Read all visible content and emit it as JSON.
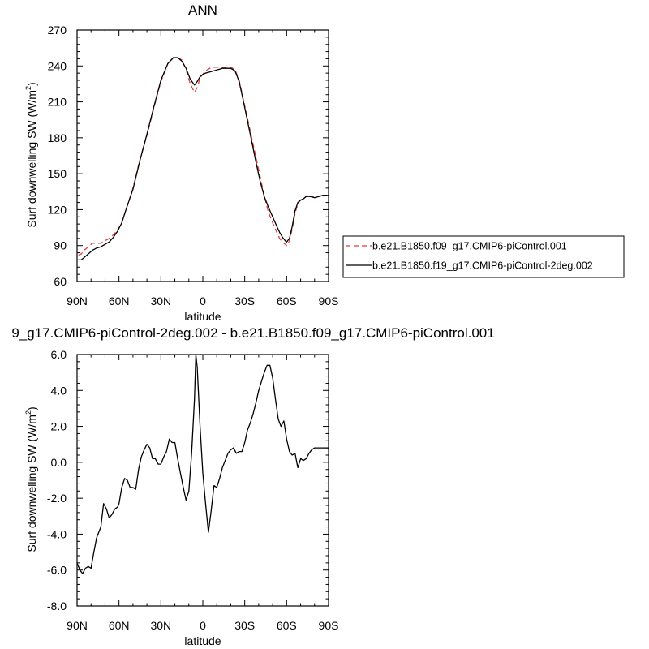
{
  "chart_data": [
    {
      "type": "line",
      "title": "ANN",
      "xlabel": "latitude",
      "ylabel": "Surf downwelling SW (W/m",
      "ylabel_sup": "2",
      "ylabel_close": ")",
      "xlim": [
        90,
        -90
      ],
      "ylim": [
        60,
        270
      ],
      "xticks": [
        90,
        60,
        30,
        0,
        -30,
        -60,
        -90
      ],
      "xtick_labels": [
        "90N",
        "60N",
        "30N",
        "0",
        "30S",
        "60S",
        "90S"
      ],
      "yticks": [
        60,
        90,
        120,
        150,
        180,
        210,
        240,
        270
      ],
      "ytick_labels": [
        "60",
        "90",
        "120",
        "150",
        "180",
        "210",
        "240",
        "270"
      ],
      "legend_position": "right",
      "series": [
        {
          "name": "b.e21.B1850.f09_g17.CMIP6-piControl.001",
          "color": "#e23b3b",
          "dash": "dashed",
          "x": [
            89,
            87,
            85,
            82,
            79,
            76,
            73,
            70,
            67,
            64,
            61,
            58,
            55,
            50,
            45,
            40,
            35,
            30,
            25,
            21,
            18,
            15,
            12,
            9,
            6,
            4,
            2,
            0,
            -2,
            -5,
            -8,
            -11,
            -14,
            -17,
            -20,
            -23,
            -26,
            -29,
            -32,
            -35,
            -38,
            -41,
            -44,
            -47,
            -50,
            -53,
            -55,
            -57,
            -59,
            -60,
            -62,
            -64,
            -66,
            -68,
            -70,
            -72,
            -74,
            -77,
            -80,
            -83,
            -86,
            -89
          ],
          "y": [
            82,
            83,
            86,
            89,
            92,
            92,
            92,
            94,
            96,
            99,
            103,
            109,
            120,
            138,
            162,
            182,
            205,
            227,
            242,
            247,
            247,
            245,
            237,
            225,
            218,
            222,
            230,
            233,
            236,
            238,
            239,
            239,
            239,
            239,
            239,
            237,
            228,
            212,
            196,
            180,
            164,
            148,
            131,
            118,
            109,
            101,
            96,
            93,
            91,
            90,
            94,
            104,
            117,
            125,
            128,
            129,
            131,
            132,
            130,
            131,
            132,
            132
          ]
        },
        {
          "name": "b.e21.B1850.f19_g17.CMIP6-piControl-2deg.002",
          "color": "#000000",
          "dash": "solid",
          "x": [
            89,
            87,
            85,
            82,
            79,
            76,
            73,
            70,
            67,
            64,
            61,
            58,
            55,
            50,
            45,
            40,
            35,
            30,
            25,
            21,
            18,
            15,
            12,
            9,
            6,
            4,
            2,
            0,
            -2,
            -5,
            -8,
            -11,
            -14,
            -17,
            -20,
            -23,
            -26,
            -29,
            -32,
            -35,
            -38,
            -41,
            -44,
            -47,
            -50,
            -53,
            -55,
            -57,
            -59,
            -60,
            -62,
            -64,
            -66,
            -68,
            -70,
            -72,
            -74,
            -77,
            -80,
            -83,
            -86,
            -89
          ],
          "y": [
            78,
            78,
            80,
            83,
            86,
            88,
            89,
            91,
            93,
            97,
            102,
            109,
            120,
            137,
            161,
            183,
            206,
            228,
            242,
            247,
            247,
            244,
            238,
            229,
            224,
            227,
            231,
            233,
            234,
            235,
            236,
            237,
            238,
            238,
            238,
            236,
            227,
            211,
            194,
            177,
            160,
            144,
            131,
            122,
            114,
            106,
            101,
            97,
            94,
            93,
            96,
            106,
            119,
            126,
            128,
            129,
            131,
            131,
            130,
            131,
            132,
            132
          ]
        }
      ]
    },
    {
      "type": "line",
      "title": "9_g17.CMIP6-piControl-2deg.002 - b.e21.B1850.f09_g17.CMIP6-piControl.001",
      "xlabel": "latitude",
      "ylabel": "Surf downwelling SW (W/m",
      "ylabel_sup": "2",
      "ylabel_close": ")",
      "xlim": [
        90,
        -90
      ],
      "ylim": [
        -8,
        6
      ],
      "xticks": [
        90,
        60,
        30,
        0,
        -30,
        -60,
        -90
      ],
      "xtick_labels": [
        "90N",
        "60N",
        "30N",
        "0",
        "30S",
        "60S",
        "90S"
      ],
      "yticks": [
        -8,
        -6,
        -4,
        -2,
        0,
        2,
        4,
        6
      ],
      "ytick_labels": [
        "-8.0",
        "-6.0",
        "-4.0",
        "-2.0",
        "0.0",
        "2.0",
        "4.0",
        "6.0"
      ],
      "series": [
        {
          "color": "#000000",
          "dash": "solid",
          "x": [
            90,
            88,
            86,
            84,
            82,
            80,
            78,
            76,
            73,
            71,
            69,
            67,
            65,
            63,
            61,
            60,
            58,
            56,
            54,
            52,
            50,
            48,
            46,
            44,
            42,
            40,
            38,
            36,
            34,
            32,
            30,
            28,
            26,
            24,
            22,
            20,
            18,
            16,
            14,
            12,
            10,
            8,
            6,
            5,
            4,
            2,
            0,
            -2,
            -4,
            -6,
            -8,
            -10,
            -12,
            -14,
            -16,
            -18,
            -20,
            -22,
            -24,
            -26,
            -28,
            -30,
            -32,
            -34,
            -36,
            -38,
            -40,
            -42,
            -44,
            -46,
            -48,
            -50,
            -52,
            -54,
            -56,
            -58,
            -60,
            -62,
            -64,
            -66,
            -68,
            -70,
            -72,
            -74,
            -76,
            -78,
            -80,
            -82,
            -84,
            -86,
            -88,
            -90
          ],
          "y": [
            -5.6,
            -6.0,
            -6.2,
            -5.9,
            -5.8,
            -5.9,
            -5.0,
            -4.2,
            -3.6,
            -2.3,
            -2.6,
            -3.1,
            -2.9,
            -2.6,
            -2.5,
            -2.3,
            -1.4,
            -0.9,
            -1.0,
            -1.4,
            -1.4,
            -1.5,
            -0.4,
            0.3,
            0.7,
            1.0,
            0.8,
            0.2,
            0.2,
            -0.1,
            -0.1,
            0.3,
            0.6,
            1.3,
            1.1,
            1.1,
            0.2,
            -0.6,
            -1.4,
            -2.1,
            -1.6,
            0.5,
            3.5,
            6.0,
            5.3,
            2.0,
            -0.6,
            -2.3,
            -3.9,
            -2.7,
            -1.3,
            -1.4,
            -0.9,
            -0.3,
            0.1,
            0.5,
            0.7,
            0.8,
            0.5,
            0.6,
            0.6,
            1.1,
            1.8,
            2.2,
            2.7,
            3.3,
            4.0,
            4.5,
            5.0,
            5.4,
            5.4,
            4.7,
            3.5,
            2.4,
            2.0,
            2.3,
            1.3,
            0.6,
            0.4,
            0.5,
            -0.3,
            0.2,
            0.1,
            0.2,
            0.5,
            0.7,
            0.8,
            0.8,
            0.8,
            0.8,
            0.8,
            0.8
          ]
        }
      ]
    }
  ]
}
